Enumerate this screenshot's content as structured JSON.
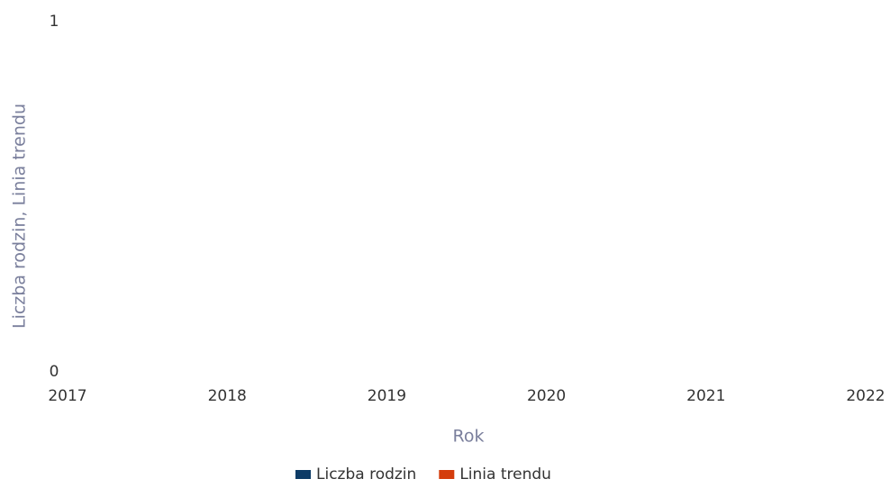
{
  "chart_data": {
    "type": "line",
    "x": [
      2017,
      2018,
      2019,
      2020,
      2021,
      2022
    ],
    "series": [
      {
        "name": "Liczba rodzin",
        "color": "#0d3b66",
        "values": [
          null,
          null,
          null,
          null,
          null,
          null
        ]
      },
      {
        "name": "Linia trendu",
        "color": "#d43d0c",
        "values": [
          null,
          null,
          null,
          null,
          null,
          null
        ]
      }
    ],
    "xlabel": "Rok",
    "ylabel": "Liczba rodzin, Linia trendu",
    "xlim": [
      2017,
      2022
    ],
    "xticks": [
      2017,
      2018,
      2019,
      2020,
      2021,
      2022
    ],
    "ylim": [
      0,
      1
    ],
    "yticks": [
      0,
      1
    ],
    "grid": false,
    "legend": "bottom"
  }
}
